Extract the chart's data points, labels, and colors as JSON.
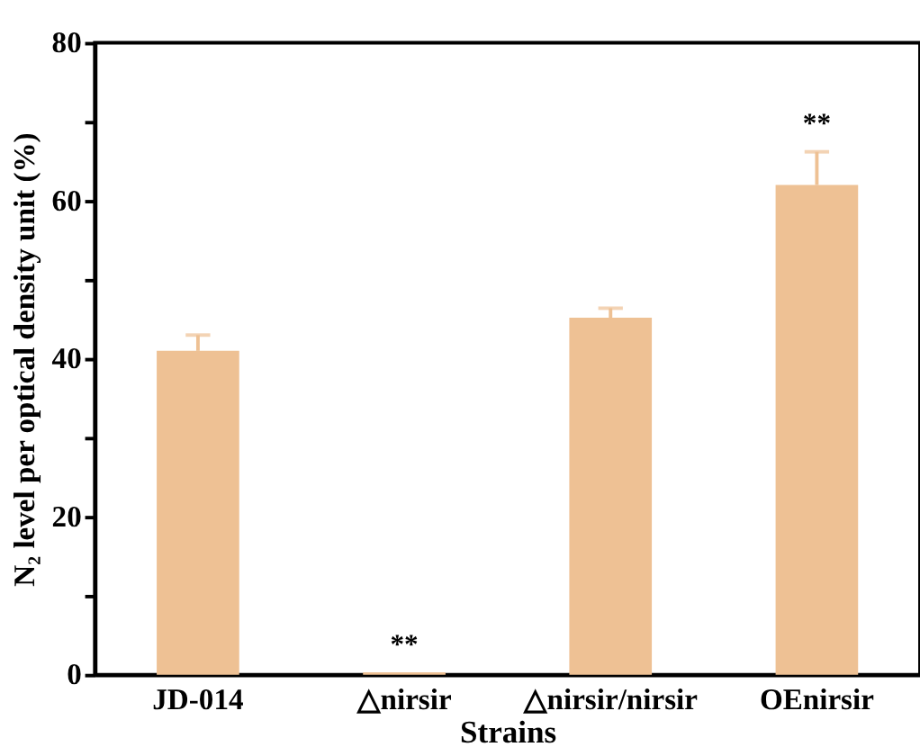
{
  "chart_data": {
    "type": "bar",
    "xlabel": "Strains",
    "ylabel": "N₂ level per optical density unit (%)",
    "categories": [
      "JD-014",
      "△nirsir",
      "△nirsir/nirsir",
      "OEnirsir"
    ],
    "values": [
      41.0,
      0.3,
      45.2,
      62.0
    ],
    "errors": [
      [
        41.0,
        43.0
      ],
      null,
      [
        45.2,
        46.4
      ],
      [
        62.0,
        66.2
      ]
    ],
    "color": "#eec194",
    "ylim": [
      0,
      80
    ],
    "yticks": [
      0,
      {
        "value": 10,
        "label": null
      },
      20,
      {
        "value": 30,
        "label": null
      },
      40,
      {
        "value": 50,
        "label": null
      },
      60,
      {
        "value": 70,
        "label": null
      },
      80
    ],
    "annotations": [
      {
        "text": "**",
        "x": "△nirsir",
        "y": 0.3
      },
      {
        "text": "**",
        "x": "OEnirsir",
        "y": 66.2
      }
    ],
    "grid": false
  }
}
